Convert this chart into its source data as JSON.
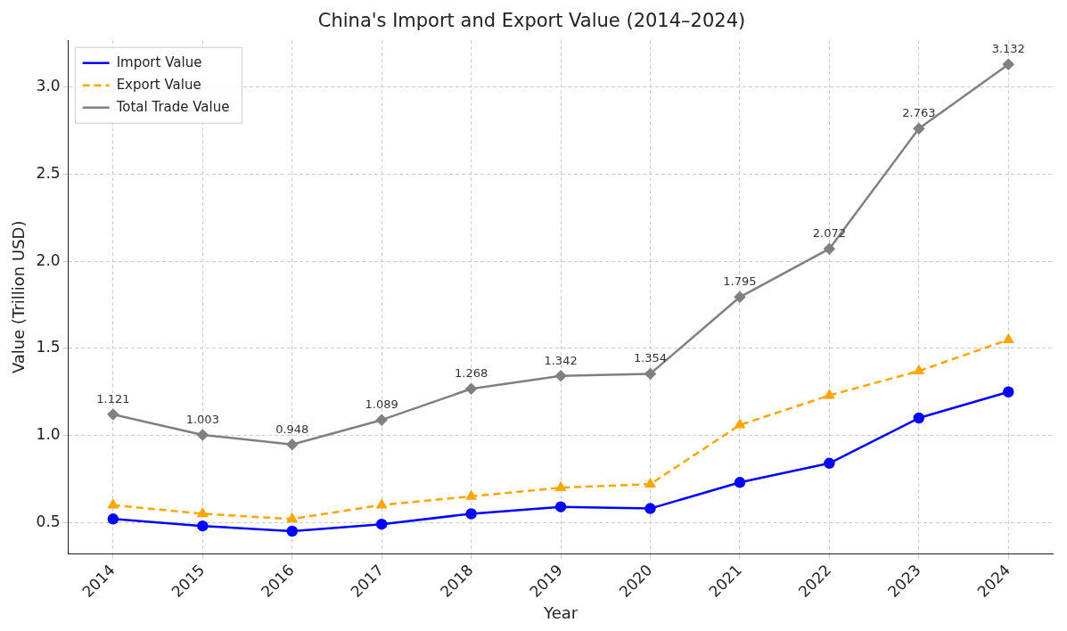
{
  "chart_data": {
    "type": "line",
    "title": "China's Import and Export Value (2014–2024)",
    "xlabel": "Year",
    "ylabel": "Value (Trillion USD)",
    "categories": [
      "2014",
      "2015",
      "2016",
      "2017",
      "2018",
      "2019",
      "2020",
      "2021",
      "2022",
      "2023",
      "2024"
    ],
    "series": [
      {
        "name": "Import Value",
        "color": "#0000ff",
        "marker": "circle",
        "line_style": "solid",
        "values": [
          0.52,
          0.48,
          0.45,
          0.49,
          0.55,
          0.59,
          0.58,
          0.73,
          0.84,
          1.1,
          1.25
        ]
      },
      {
        "name": "Export Value",
        "color": "#ffa500",
        "marker": "triangle",
        "line_style": "dashed",
        "values": [
          0.6,
          0.55,
          0.52,
          0.6,
          0.65,
          0.7,
          0.72,
          1.06,
          1.23,
          1.37,
          1.55
        ]
      },
      {
        "name": "Total Trade Value",
        "color": "#808080",
        "marker": "diamond",
        "line_style": "solid",
        "data_labels": true,
        "values": [
          1.121,
          1.003,
          0.948,
          1.089,
          1.268,
          1.342,
          1.354,
          1.795,
          2.072,
          2.763,
          3.132
        ]
      }
    ],
    "ylim": [
      0.32,
      3.27
    ],
    "yticks": [
      0.5,
      {
        "value": 1,
        "label": "1.0"
      },
      1.5,
      {
        "value": 2,
        "label": "2.0"
      },
      2.5,
      {
        "value": 3,
        "label": "3.0"
      }
    ],
    "grid": true,
    "legend": "top left"
  }
}
